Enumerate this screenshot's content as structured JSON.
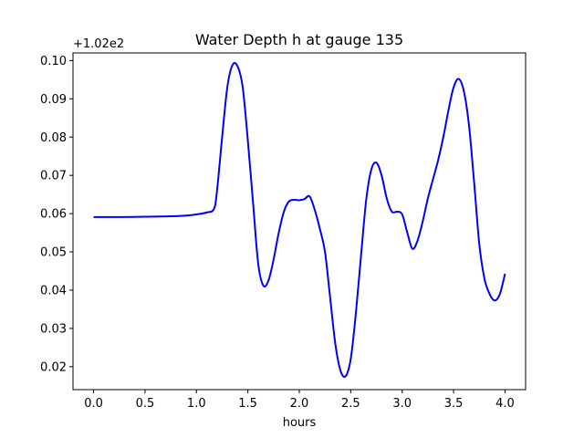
{
  "chart_data": {
    "type": "line",
    "title": "Water Depth h at gauge 135",
    "xlabel": "hours",
    "ylabel": "",
    "y_offset_text": "+1.02e2",
    "xlim": [
      -0.2,
      4.2
    ],
    "ylim": [
      0.014,
      0.102
    ],
    "grid": false,
    "x_ticks": [
      0.0,
      0.5,
      1.0,
      1.5,
      2.0,
      2.5,
      3.0,
      3.5,
      4.0
    ],
    "x_tick_labels": [
      "0.0",
      "0.5",
      "1.0",
      "1.5",
      "2.0",
      "2.5",
      "3.0",
      "3.5",
      "4.0"
    ],
    "y_ticks": [
      0.02,
      0.03,
      0.04,
      0.05,
      0.06,
      0.07,
      0.08,
      0.09,
      0.1
    ],
    "y_tick_labels": [
      "0.02",
      "0.03",
      "0.04",
      "0.05",
      "0.06",
      "0.07",
      "0.08",
      "0.09",
      "0.10"
    ],
    "series": [
      {
        "color": "#0000ff",
        "x": [
          0.0,
          0.25,
          0.5,
          0.75,
          0.9,
          1.0,
          1.1,
          1.17,
          1.2,
          1.25,
          1.3,
          1.35,
          1.4,
          1.45,
          1.5,
          1.55,
          1.6,
          1.65,
          1.7,
          1.75,
          1.8,
          1.85,
          1.9,
          1.95,
          2.0,
          2.05,
          2.1,
          2.15,
          2.2,
          2.25,
          2.3,
          2.35,
          2.4,
          2.45,
          2.5,
          2.55,
          2.6,
          2.65,
          2.7,
          2.75,
          2.8,
          2.85,
          2.9,
          2.95,
          3.0,
          3.05,
          3.1,
          3.15,
          3.2,
          3.25,
          3.3,
          3.35,
          3.4,
          3.45,
          3.5,
          3.55,
          3.6,
          3.65,
          3.7,
          3.75,
          3.8,
          3.85,
          3.9,
          3.95,
          4.0
        ],
        "y": [
          0.0591,
          0.0591,
          0.0592,
          0.0593,
          0.0595,
          0.0598,
          0.0603,
          0.0612,
          0.066,
          0.08,
          0.093,
          0.0988,
          0.0985,
          0.093,
          0.079,
          0.063,
          0.047,
          0.0412,
          0.0425,
          0.048,
          0.055,
          0.0605,
          0.0632,
          0.0636,
          0.0635,
          0.0638,
          0.0645,
          0.061,
          0.056,
          0.05,
          0.038,
          0.026,
          0.019,
          0.0175,
          0.022,
          0.034,
          0.049,
          0.0635,
          0.0715,
          0.0733,
          0.07,
          0.064,
          0.0605,
          0.0605,
          0.0598,
          0.055,
          0.0508,
          0.053,
          0.058,
          0.064,
          0.069,
          0.074,
          0.08,
          0.087,
          0.093,
          0.0952,
          0.092,
          0.083,
          0.068,
          0.052,
          0.043,
          0.039,
          0.0373,
          0.039,
          0.0443
        ]
      }
    ]
  }
}
